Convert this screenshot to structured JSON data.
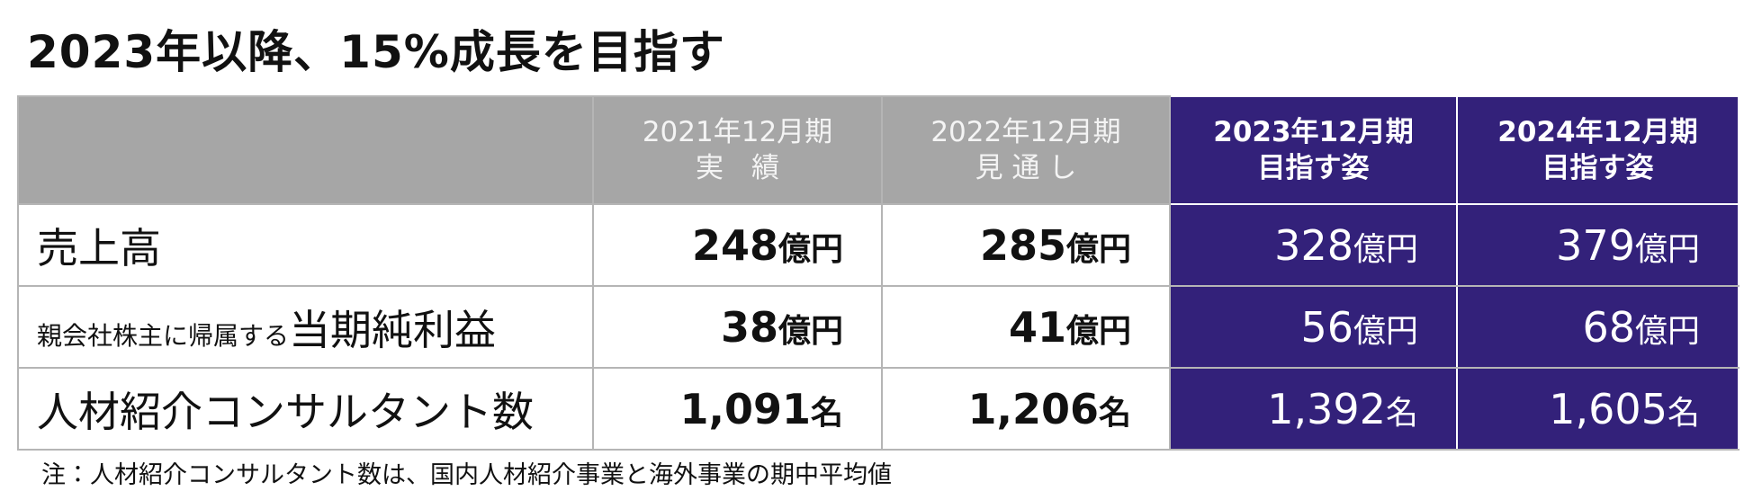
{
  "header": {
    "title": "2023年以降、15%成長を目指す"
  },
  "table": {
    "columns": [
      {
        "line1": "2021年12月期",
        "line2": "実　績"
      },
      {
        "line1": "2022年12月期",
        "line2": "見 通 し"
      },
      {
        "line1": "2023年12月期",
        "line2": "目指す姿"
      },
      {
        "line1": "2024年12月期",
        "line2": "目指す姿"
      }
    ],
    "rows": [
      {
        "label_prefix": "",
        "label": "売上高",
        "cells": [
          {
            "value": "248",
            "unit": "億円"
          },
          {
            "value": "285",
            "unit": "億円"
          },
          {
            "value": "328",
            "unit": "億円"
          },
          {
            "value": "379",
            "unit": "億円"
          }
        ]
      },
      {
        "label_prefix": "親会社株主に帰属する",
        "label": "当期純利益",
        "cells": [
          {
            "value": "38",
            "unit": "億円"
          },
          {
            "value": "41",
            "unit": "億円"
          },
          {
            "value": "56",
            "unit": "億円"
          },
          {
            "value": "68",
            "unit": "億円"
          }
        ]
      },
      {
        "label_prefix": "",
        "label": "人材紹介コンサルタント数",
        "cells": [
          {
            "value": "1,091",
            "unit": "名"
          },
          {
            "value": "1,206",
            "unit": "名"
          },
          {
            "value": "1,392",
            "unit": "名"
          },
          {
            "value": "1,605",
            "unit": "名"
          }
        ]
      }
    ]
  },
  "footnote": "注：人材紹介コンサルタント数は、国内人材紹介事業と海外事業の期中平均値"
}
